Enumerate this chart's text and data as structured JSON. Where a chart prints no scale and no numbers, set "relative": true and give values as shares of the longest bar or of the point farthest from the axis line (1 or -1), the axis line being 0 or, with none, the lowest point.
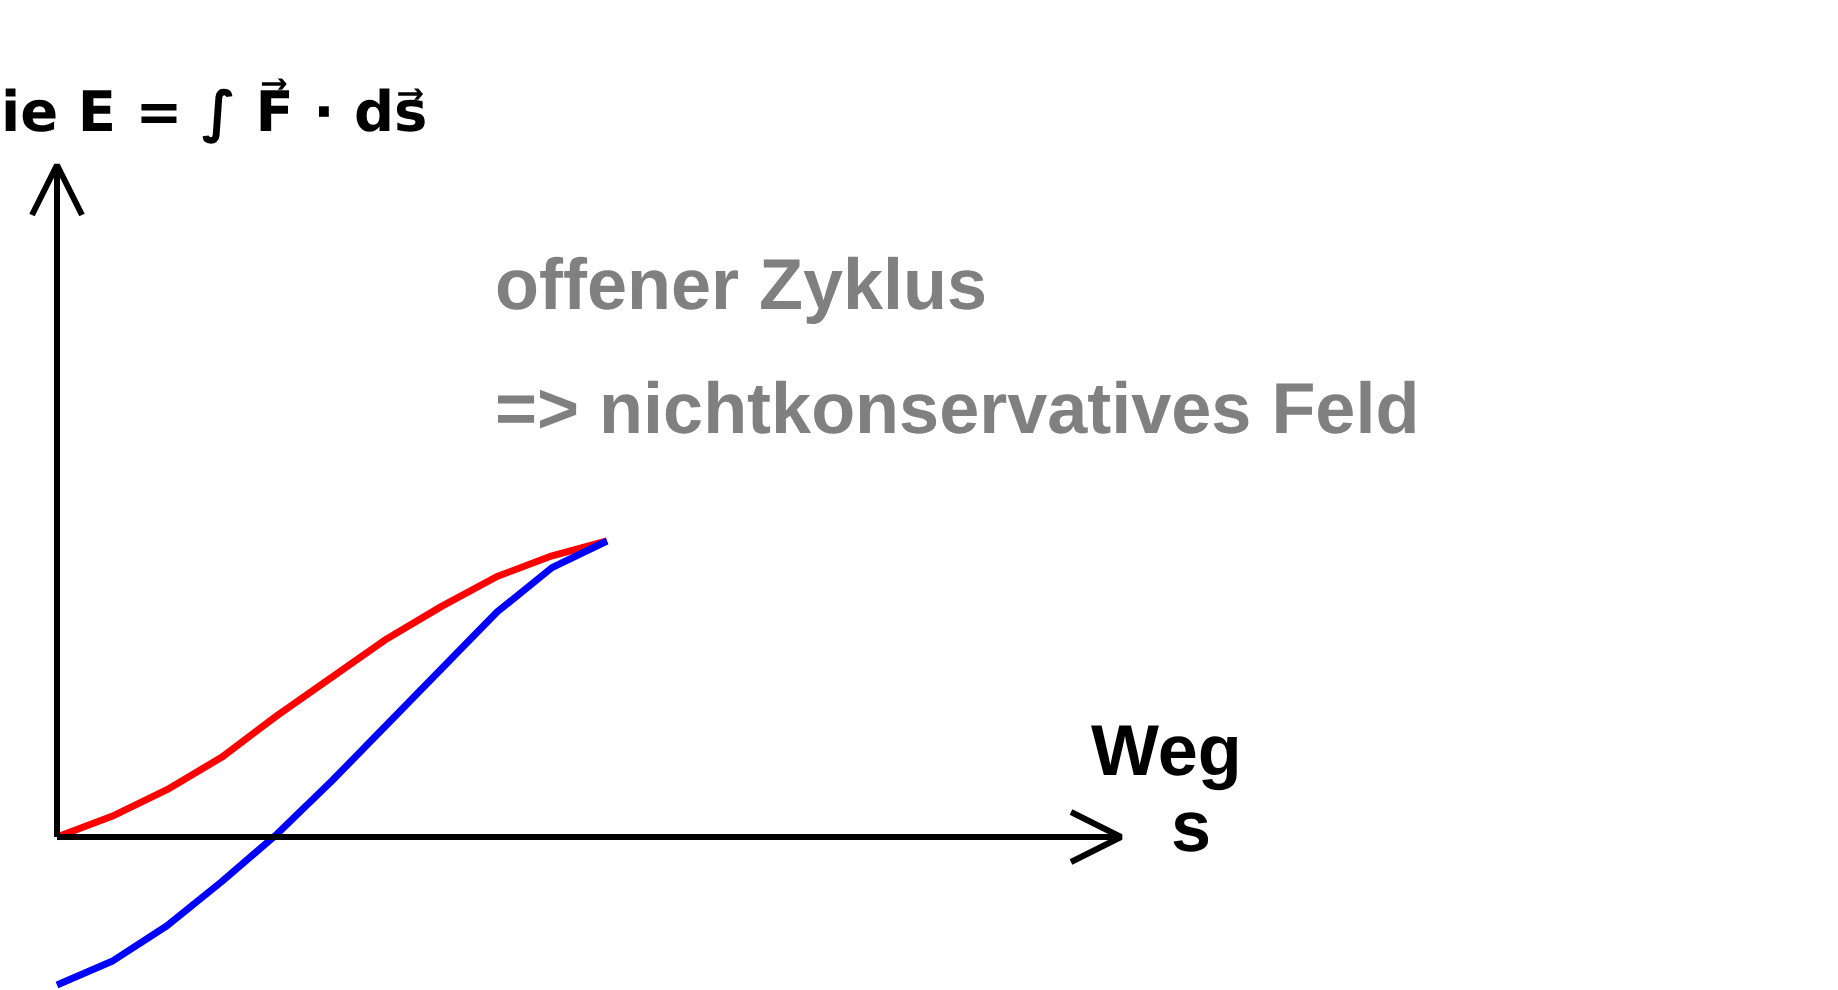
{
  "chart_data": {
    "type": "line",
    "relative": true,
    "annotations": [
      "ie E = ∫ F⃗ · ds⃗",
      "offener Zyklus",
      "=> nichtkonservatives Feld",
      "Weg",
      "s"
    ],
    "categories": [
      null,
      null,
      null,
      null,
      null,
      null,
      null,
      null,
      null,
      null,
      null
    ],
    "series": [
      {
        "color": "#ff0000",
        "values": [
          0,
          0.07,
          0.16,
          0.27,
          0.41,
          0.54,
          0.67,
          0.78,
          0.88,
          0.95,
          1
        ]
      },
      {
        "color": "#0000ff",
        "values": [
          -0.5,
          -0.42,
          -0.3,
          -0.15,
          0.01,
          0.19,
          0.38,
          0.57,
          0.76,
          0.91,
          1
        ]
      }
    ]
  }
}
